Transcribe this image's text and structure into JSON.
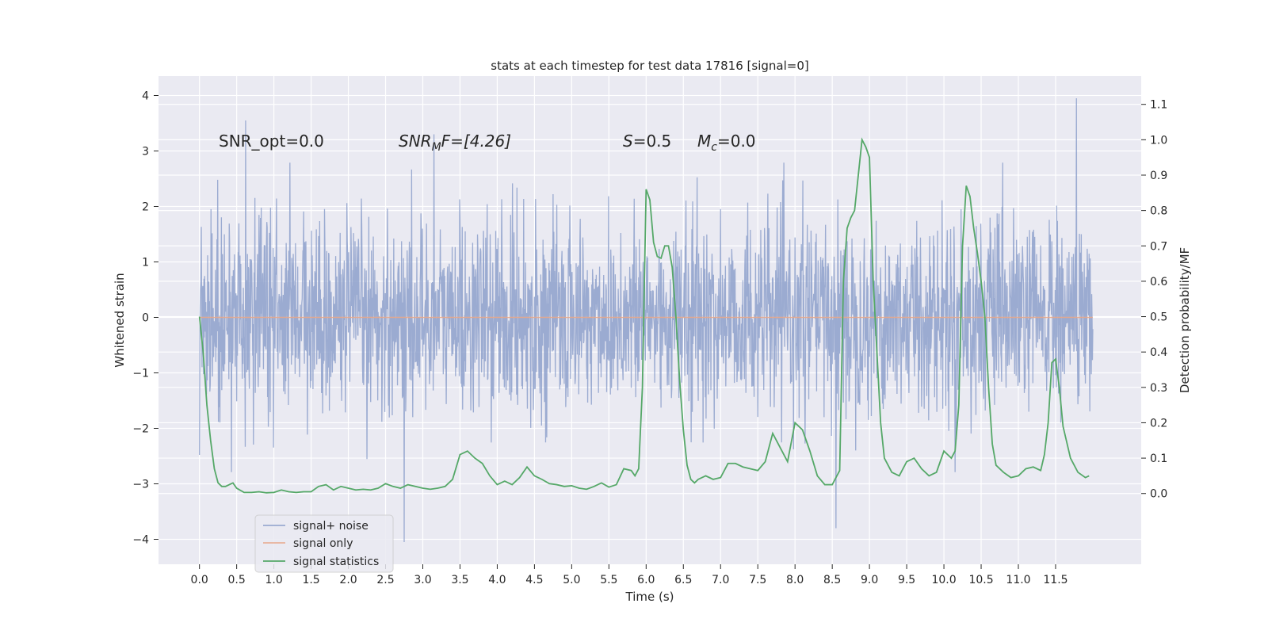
{
  "chart_data": {
    "type": "line",
    "title": "stats at each timestep for test data 17816 [signal=0]",
    "xlabel": "Time (s)",
    "ylabel": "Whitened strain",
    "ylabel_right": "Detection probability/MF",
    "xlim": [
      -0.55,
      12.65
    ],
    "ylim": [
      -4.45,
      4.35
    ],
    "ylim_right": [
      -0.2,
      1.18
    ],
    "x_ticks": [
      0.0,
      0.5,
      1.0,
      1.5,
      2.0,
      2.5,
      3.0,
      3.5,
      4.0,
      4.5,
      5.0,
      5.5,
      6.0,
      6.5,
      7.0,
      7.5,
      8.0,
      8.5,
      9.0,
      9.5,
      10.0,
      10.5,
      11.0,
      11.5
    ],
    "x_tick_labels": [
      "0.0",
      "0.5",
      "1.0",
      "1.5",
      "2.0",
      "2.5",
      "3.0",
      "3.5",
      "4.0",
      "4.5",
      "5.0",
      "5.5",
      "6.0",
      "6.5",
      "7.0",
      "7.5",
      "8.0",
      "8.5",
      "9.0",
      "9.5",
      "10.0",
      "10.5",
      "11.0",
      "11.5"
    ],
    "y_ticks": [
      -4,
      -3,
      -2,
      -1,
      0,
      1,
      2,
      3,
      4
    ],
    "y_tick_labels": [
      "−4",
      "−3",
      "−2",
      "−1",
      "0",
      "1",
      "2",
      "3",
      "4"
    ],
    "y_ticks_right": [
      0.0,
      0.1,
      0.2,
      0.3,
      0.4,
      0.5,
      0.6,
      0.7,
      0.8,
      0.9,
      1.0,
      1.1
    ],
    "y_tick_labels_right": [
      "0.0",
      "0.1",
      "0.2",
      "0.3",
      "0.4",
      "0.5",
      "0.6",
      "0.7",
      "0.8",
      "0.9",
      "1.0",
      "1.1"
    ],
    "grid": true,
    "legend_position": "lower-left",
    "annotations": {
      "snr_opt": "SNR_opt=0.0",
      "snr_mf_main": "SNR",
      "snr_mf_sub": "M",
      "snr_mf_rest": "F=[4.26]",
      "s_main": "S",
      "s_rest": "=0.5",
      "mc_main": "M",
      "mc_sub": "c",
      "mc_rest": "=0.0"
    },
    "series": [
      {
        "name": "signal+ noise",
        "axis": "left",
        "color": "#8da0cb",
        "kind": "noise",
        "x_range": [
          0.0,
          12.0
        ],
        "typical_amplitude": 1.8,
        "peak_max": 3.95,
        "peak_min": -4.05,
        "notable_extremes": [
          {
            "x": 0.62,
            "y": 3.55
          },
          {
            "x": 2.75,
            "y": -4.05
          },
          {
            "x": 3.15,
            "y": 3.3
          },
          {
            "x": 8.55,
            "y": -3.8
          },
          {
            "x": 11.78,
            "y": 3.95
          }
        ]
      },
      {
        "name": "signal only",
        "axis": "left",
        "color": "#e8a88a",
        "x": [
          0.0,
          12.0
        ],
        "y": [
          0.0,
          0.0
        ]
      },
      {
        "name": "signal statistics",
        "axis": "right",
        "color": "#55a868",
        "x": [
          0.0,
          0.05,
          0.1,
          0.15,
          0.2,
          0.25,
          0.3,
          0.35,
          0.4,
          0.45,
          0.5,
          0.6,
          0.7,
          0.8,
          0.9,
          1.0,
          1.1,
          1.2,
          1.3,
          1.4,
          1.5,
          1.6,
          1.7,
          1.8,
          1.9,
          2.0,
          2.1,
          2.2,
          2.3,
          2.4,
          2.5,
          2.6,
          2.7,
          2.8,
          2.9,
          3.0,
          3.1,
          3.2,
          3.3,
          3.4,
          3.5,
          3.6,
          3.7,
          3.8,
          3.9,
          4.0,
          4.1,
          4.2,
          4.3,
          4.4,
          4.5,
          4.6,
          4.7,
          4.8,
          4.9,
          5.0,
          5.1,
          5.2,
          5.3,
          5.4,
          5.5,
          5.6,
          5.7,
          5.8,
          5.85,
          5.9,
          5.95,
          6.0,
          6.05,
          6.1,
          6.15,
          6.2,
          6.25,
          6.3,
          6.35,
          6.4,
          6.45,
          6.5,
          6.55,
          6.6,
          6.65,
          6.7,
          6.8,
          6.9,
          7.0,
          7.1,
          7.2,
          7.3,
          7.4,
          7.5,
          7.6,
          7.7,
          7.8,
          7.9,
          8.0,
          8.1,
          8.2,
          8.3,
          8.4,
          8.5,
          8.55,
          8.6,
          8.65,
          8.7,
          8.75,
          8.8,
          8.85,
          8.9,
          8.95,
          9.0,
          9.05,
          9.1,
          9.15,
          9.2,
          9.3,
          9.4,
          9.5,
          9.6,
          9.7,
          9.8,
          9.9,
          10.0,
          10.05,
          10.1,
          10.15,
          10.2,
          10.25,
          10.3,
          10.35,
          10.4,
          10.45,
          10.5,
          10.55,
          10.6,
          10.65,
          10.7,
          10.8,
          10.9,
          11.0,
          11.1,
          11.2,
          11.3,
          11.35,
          11.4,
          11.45,
          11.5,
          11.55,
          11.6,
          11.7,
          11.8,
          11.9,
          11.95
        ],
        "y": [
          0.5,
          0.4,
          0.25,
          0.15,
          0.07,
          0.03,
          0.02,
          0.02,
          0.025,
          0.03,
          0.015,
          0.003,
          0.003,
          0.005,
          0.002,
          0.003,
          0.01,
          0.005,
          0.003,
          0.005,
          0.005,
          0.02,
          0.025,
          0.01,
          0.02,
          0.015,
          0.01,
          0.012,
          0.01,
          0.015,
          0.028,
          0.02,
          0.015,
          0.025,
          0.02,
          0.015,
          0.012,
          0.015,
          0.02,
          0.04,
          0.11,
          0.12,
          0.1,
          0.085,
          0.05,
          0.025,
          0.035,
          0.025,
          0.045,
          0.075,
          0.05,
          0.04,
          0.028,
          0.025,
          0.02,
          0.022,
          0.015,
          0.012,
          0.02,
          0.03,
          0.018,
          0.025,
          0.07,
          0.065,
          0.05,
          0.07,
          0.3,
          0.86,
          0.83,
          0.71,
          0.67,
          0.665,
          0.7,
          0.7,
          0.64,
          0.5,
          0.32,
          0.18,
          0.08,
          0.04,
          0.03,
          0.04,
          0.05,
          0.04,
          0.045,
          0.085,
          0.085,
          0.075,
          0.07,
          0.065,
          0.09,
          0.17,
          0.13,
          0.09,
          0.2,
          0.18,
          0.12,
          0.05,
          0.025,
          0.025,
          0.045,
          0.065,
          0.6,
          0.75,
          0.78,
          0.8,
          0.9,
          1.0,
          0.98,
          0.95,
          0.6,
          0.4,
          0.2,
          0.1,
          0.06,
          0.05,
          0.09,
          0.1,
          0.07,
          0.05,
          0.06,
          0.12,
          0.11,
          0.1,
          0.12,
          0.25,
          0.7,
          0.87,
          0.84,
          0.75,
          0.68,
          0.6,
          0.5,
          0.3,
          0.14,
          0.08,
          0.06,
          0.045,
          0.05,
          0.07,
          0.075,
          0.065,
          0.11,
          0.2,
          0.37,
          0.38,
          0.3,
          0.19,
          0.1,
          0.06,
          0.045,
          0.05
        ]
      }
    ]
  }
}
